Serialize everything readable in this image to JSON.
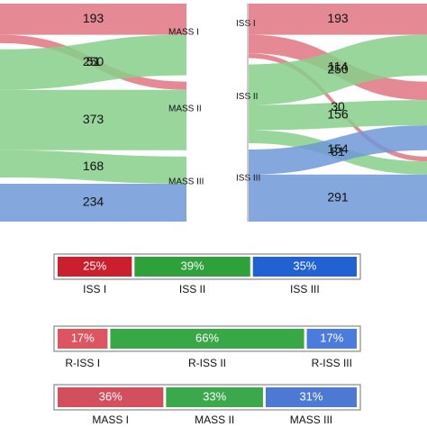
{
  "left_sankey": {
    "targets": [
      "MASS I",
      "MASS II",
      "MASS III"
    ],
    "sources": [
      {
        "color": "#e07683",
        "values": [
          193,
          51,
          null
        ]
      },
      {
        "color": "#86cf8a",
        "values": [
          250,
          373,
          168
        ]
      },
      {
        "color": "#6f98d8",
        "values": [
          null,
          null,
          234
        ]
      }
    ]
  },
  "right_sankey": {
    "sources": [
      {
        "name": "ISS I",
        "color": "#e07683",
        "values": [
          193,
          114,
          30
        ]
      },
      {
        "name": "ISS II",
        "color": "#86cf8a",
        "values": [
          250,
          156,
          81
        ]
      },
      {
        "name": "ISS III",
        "color": "#6f98d8",
        "values": [
          null,
          154,
          291
        ]
      }
    ]
  },
  "bars": [
    {
      "names": [
        "ISS I",
        "ISS II",
        "ISS III"
      ],
      "values": [
        25,
        39,
        35
      ],
      "value_labels": [
        "25%",
        "39%",
        "35%"
      ],
      "colors": [
        "#cc1f2d",
        "#2ea13a",
        "#2062d4"
      ]
    },
    {
      "names": [
        "R-ISS I",
        "R-ISS II",
        "R-ISS III"
      ],
      "values": [
        17,
        66,
        17
      ],
      "value_labels": [
        "17%",
        "66%",
        "17%"
      ],
      "colors": [
        "#dc5561",
        "#38a846",
        "#4b7bdc"
      ]
    },
    {
      "names": [
        "MASS I",
        "MASS II",
        "MASS III"
      ],
      "values": [
        36,
        33,
        31
      ],
      "value_labels": [
        "36%",
        "33%",
        "31%"
      ],
      "colors": [
        "#d44f5e",
        "#3ba84b",
        "#4d78d4"
      ]
    }
  ]
}
